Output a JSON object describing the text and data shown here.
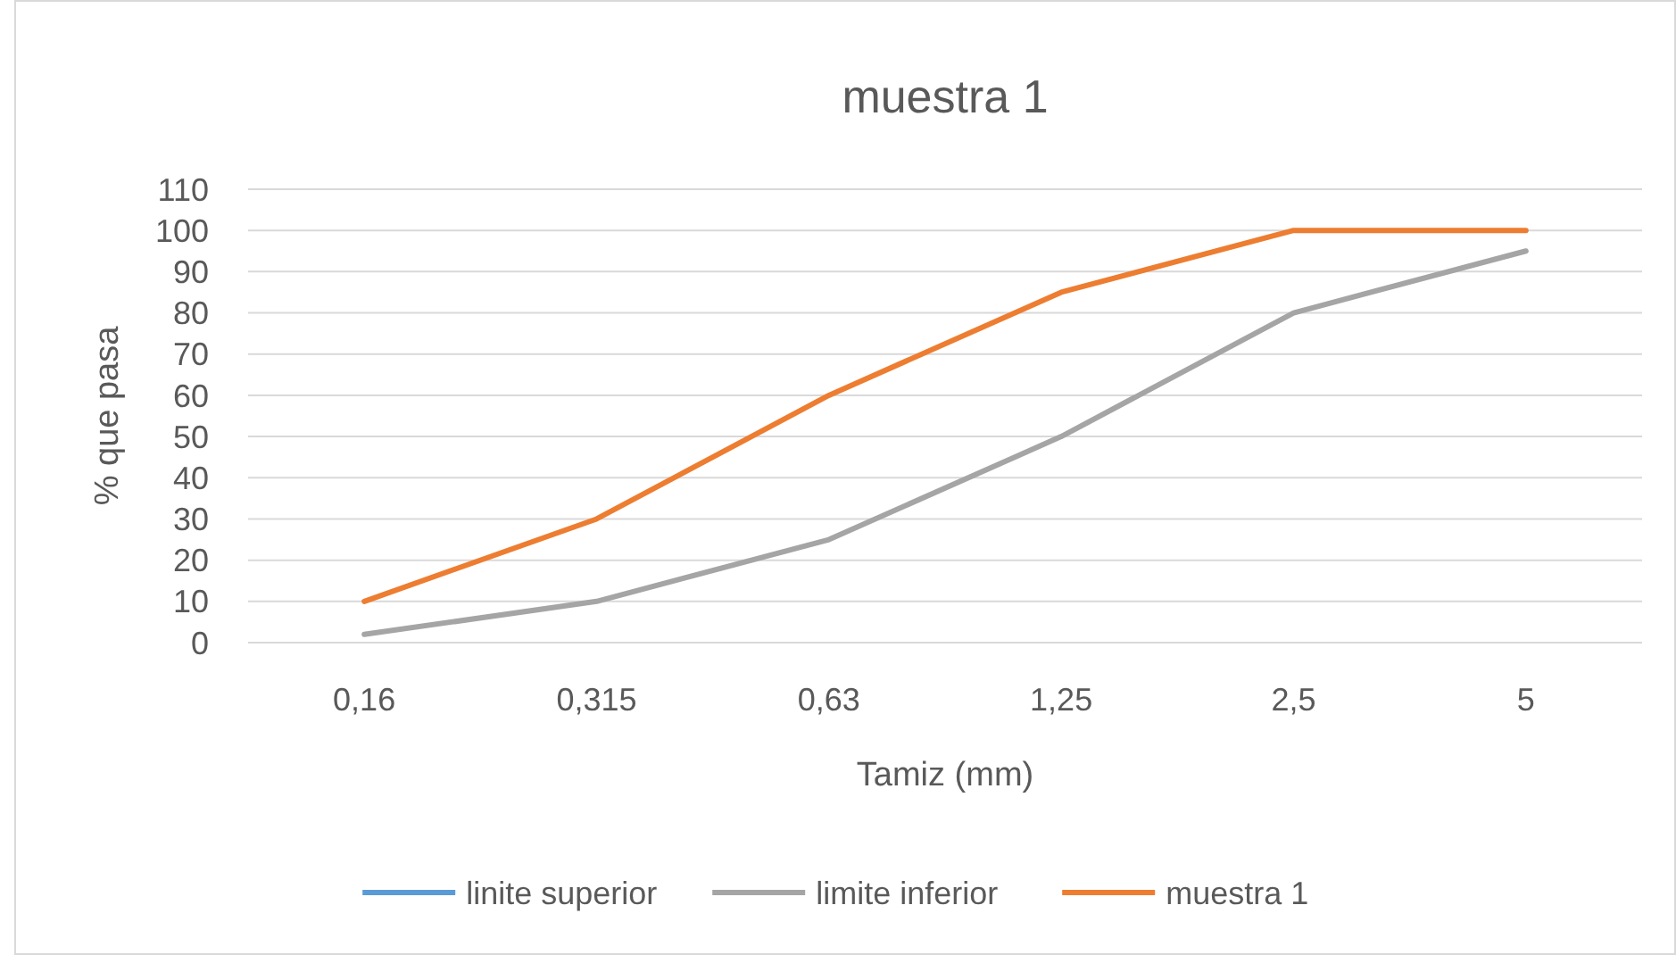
{
  "chart_data": {
    "type": "line",
    "title": "muestra 1",
    "xlabel": "Tamiz (mm)",
    "ylabel": "% que pasa",
    "categories": [
      "0,16",
      "0,315",
      "0,63",
      "1,25",
      "2,5",
      "5"
    ],
    "series": [
      {
        "name": "linite superior",
        "color": "#5b9bd5",
        "values": [
          null,
          null,
          null,
          null,
          null,
          null
        ]
      },
      {
        "name": "limite inferior",
        "color": "#a5a5a5",
        "values": [
          2,
          10,
          25,
          50,
          80,
          95
        ]
      },
      {
        "name": "muestra 1",
        "color": "#ed7d31",
        "values": [
          10,
          30,
          60,
          85,
          100,
          100
        ]
      }
    ],
    "ylim": [
      0,
      110
    ],
    "yticks": [
      0,
      10,
      20,
      30,
      40,
      50,
      60,
      70,
      80,
      90,
      100,
      110
    ],
    "grid": "y",
    "legend": "bottom",
    "marker": "none",
    "line_style": "solid"
  }
}
